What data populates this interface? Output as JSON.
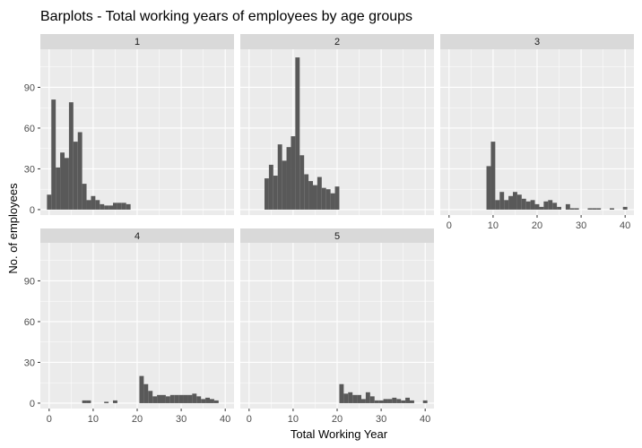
{
  "chart_data": {
    "type": "bar",
    "title": "Barplots - Total working years of employees by age groups",
    "xlabel": "Total Working Year",
    "ylabel": "No. of employees",
    "xlim": [
      -2,
      42
    ],
    "ylim": [
      -4,
      118
    ],
    "x_ticks": [
      "0",
      "10",
      "20",
      "30",
      "40"
    ],
    "y_ticks": [
      "0",
      "30",
      "60",
      "90"
    ],
    "panel_background": "#ebebeb",
    "grid_color": "#ffffff",
    "bar_color": "#595959",
    "grid": true,
    "panels": [
      {
        "label": "1",
        "x": [
          0,
          1,
          2,
          3,
          4,
          5,
          6,
          7,
          8,
          9,
          10,
          11,
          12,
          13,
          14,
          15,
          16,
          17,
          18,
          19
        ],
        "values": [
          11,
          81,
          31,
          42,
          38,
          79,
          50,
          57,
          19,
          7,
          10,
          7,
          4,
          3,
          3,
          5,
          5,
          5,
          4,
          0
        ]
      },
      {
        "label": "2",
        "x": [
          4,
          5,
          6,
          7,
          8,
          9,
          10,
          11,
          12,
          13,
          14,
          15,
          16,
          17,
          18,
          19,
          20
        ],
        "values": [
          23,
          33,
          25,
          48,
          36,
          46,
          54,
          112,
          40,
          26,
          21,
          18,
          24,
          16,
          15,
          12,
          17
        ]
      },
      {
        "label": "3",
        "x": [
          9,
          10,
          11,
          12,
          13,
          14,
          15,
          16,
          17,
          18,
          19,
          20,
          21,
          22,
          23,
          24,
          25,
          26,
          27,
          28,
          29,
          30,
          31,
          32,
          33,
          34,
          35,
          36,
          37,
          38,
          39,
          40
        ],
        "values": [
          32,
          50,
          7,
          13,
          7,
          10,
          13,
          11,
          8,
          6,
          7,
          4,
          2,
          6,
          7,
          5,
          2,
          0,
          4,
          1,
          1,
          0,
          0,
          1,
          1,
          1,
          0,
          0,
          1,
          0,
          0,
          2
        ]
      },
      {
        "label": "4",
        "x": [
          8,
          9,
          13,
          15,
          21,
          22,
          23,
          24,
          25,
          26,
          27,
          28,
          29,
          30,
          31,
          32,
          33,
          34,
          35,
          36,
          37,
          38
        ],
        "values": [
          2,
          2,
          1,
          2,
          20,
          14,
          9,
          5,
          6,
          6,
          5,
          6,
          6,
          6,
          6,
          6,
          7,
          5,
          3,
          4,
          3,
          2
        ]
      },
      {
        "label": "5",
        "x": [
          21,
          22,
          23,
          24,
          25,
          26,
          27,
          28,
          29,
          30,
          31,
          32,
          33,
          34,
          35,
          36,
          37,
          40
        ],
        "values": [
          14,
          7,
          8,
          6,
          6,
          3,
          8,
          5,
          2,
          2,
          3,
          3,
          4,
          3,
          2,
          4,
          2,
          2
        ]
      }
    ]
  }
}
